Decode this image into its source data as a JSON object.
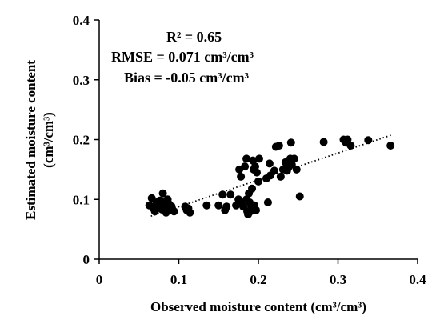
{
  "chart_data": {
    "type": "scatter",
    "xlabel": "Observed moisture content (cm³/cm³)",
    "ylabel_line1": "Estimated moisture content",
    "ylabel_line2": "(cm³/cm³)",
    "xlim": [
      0,
      0.4
    ],
    "ylim": [
      0,
      0.4
    ],
    "xticks": [
      "0",
      "0.1",
      "0.2",
      "0.3",
      "0.4"
    ],
    "yticks": [
      "0",
      "0.1",
      "0.2",
      "0.3",
      "0.4"
    ],
    "grid": false,
    "stats": {
      "r2": "R² = 0.65",
      "rmse": "RMSE = 0.071 cm³/cm³",
      "bias": "Bias = -0.05 cm³/cm³"
    },
    "trendline": {
      "style": "dotted",
      "x": [
        0.065,
        0.368
      ],
      "y": [
        0.072,
        0.208
      ]
    },
    "marker_color": "#000000",
    "points": [
      [
        0.063,
        0.09
      ],
      [
        0.066,
        0.102
      ],
      [
        0.068,
        0.085
      ],
      [
        0.07,
        0.08
      ],
      [
        0.072,
        0.095
      ],
      [
        0.074,
        0.088
      ],
      [
        0.076,
        0.098
      ],
      [
        0.078,
        0.09
      ],
      [
        0.079,
        0.083
      ],
      [
        0.08,
        0.11
      ],
      [
        0.081,
        0.095
      ],
      [
        0.083,
        0.09
      ],
      [
        0.084,
        0.078
      ],
      [
        0.085,
        0.085
      ],
      [
        0.086,
        0.1
      ],
      [
        0.088,
        0.092
      ],
      [
        0.089,
        0.082
      ],
      [
        0.091,
        0.088
      ],
      [
        0.094,
        0.08
      ],
      [
        0.108,
        0.088
      ],
      [
        0.11,
        0.082
      ],
      [
        0.112,
        0.085
      ],
      [
        0.114,
        0.078
      ],
      [
        0.135,
        0.09
      ],
      [
        0.15,
        0.09
      ],
      [
        0.155,
        0.108
      ],
      [
        0.158,
        0.082
      ],
      [
        0.16,
        0.088
      ],
      [
        0.165,
        0.108
      ],
      [
        0.172,
        0.09
      ],
      [
        0.175,
        0.1
      ],
      [
        0.176,
        0.15
      ],
      [
        0.178,
        0.095
      ],
      [
        0.178,
        0.138
      ],
      [
        0.181,
        0.088
      ],
      [
        0.183,
        0.155
      ],
      [
        0.185,
        0.1
      ],
      [
        0.185,
        0.168
      ],
      [
        0.186,
        0.08
      ],
      [
        0.187,
        0.075
      ],
      [
        0.188,
        0.11
      ],
      [
        0.189,
        0.095
      ],
      [
        0.19,
        0.08
      ],
      [
        0.191,
        0.088
      ],
      [
        0.192,
        0.118
      ],
      [
        0.193,
        0.165
      ],
      [
        0.194,
        0.15
      ],
      [
        0.195,
        0.09
      ],
      [
        0.196,
        0.155
      ],
      [
        0.197,
        0.082
      ],
      [
        0.198,
        0.145
      ],
      [
        0.2,
        0.13
      ],
      [
        0.201,
        0.168
      ],
      [
        0.21,
        0.135
      ],
      [
        0.212,
        0.095
      ],
      [
        0.214,
        0.16
      ],
      [
        0.215,
        0.14
      ],
      [
        0.22,
        0.148
      ],
      [
        0.222,
        0.188
      ],
      [
        0.226,
        0.19
      ],
      [
        0.228,
        0.138
      ],
      [
        0.231,
        0.15
      ],
      [
        0.234,
        0.162
      ],
      [
        0.236,
        0.148
      ],
      [
        0.238,
        0.155
      ],
      [
        0.24,
        0.168
      ],
      [
        0.241,
        0.195
      ],
      [
        0.242,
        0.158
      ],
      [
        0.245,
        0.168
      ],
      [
        0.248,
        0.15
      ],
      [
        0.252,
        0.105
      ],
      [
        0.282,
        0.196
      ],
      [
        0.307,
        0.2
      ],
      [
        0.31,
        0.195
      ],
      [
        0.312,
        0.2
      ],
      [
        0.316,
        0.19
      ],
      [
        0.338,
        0.199
      ],
      [
        0.366,
        0.19
      ]
    ]
  }
}
